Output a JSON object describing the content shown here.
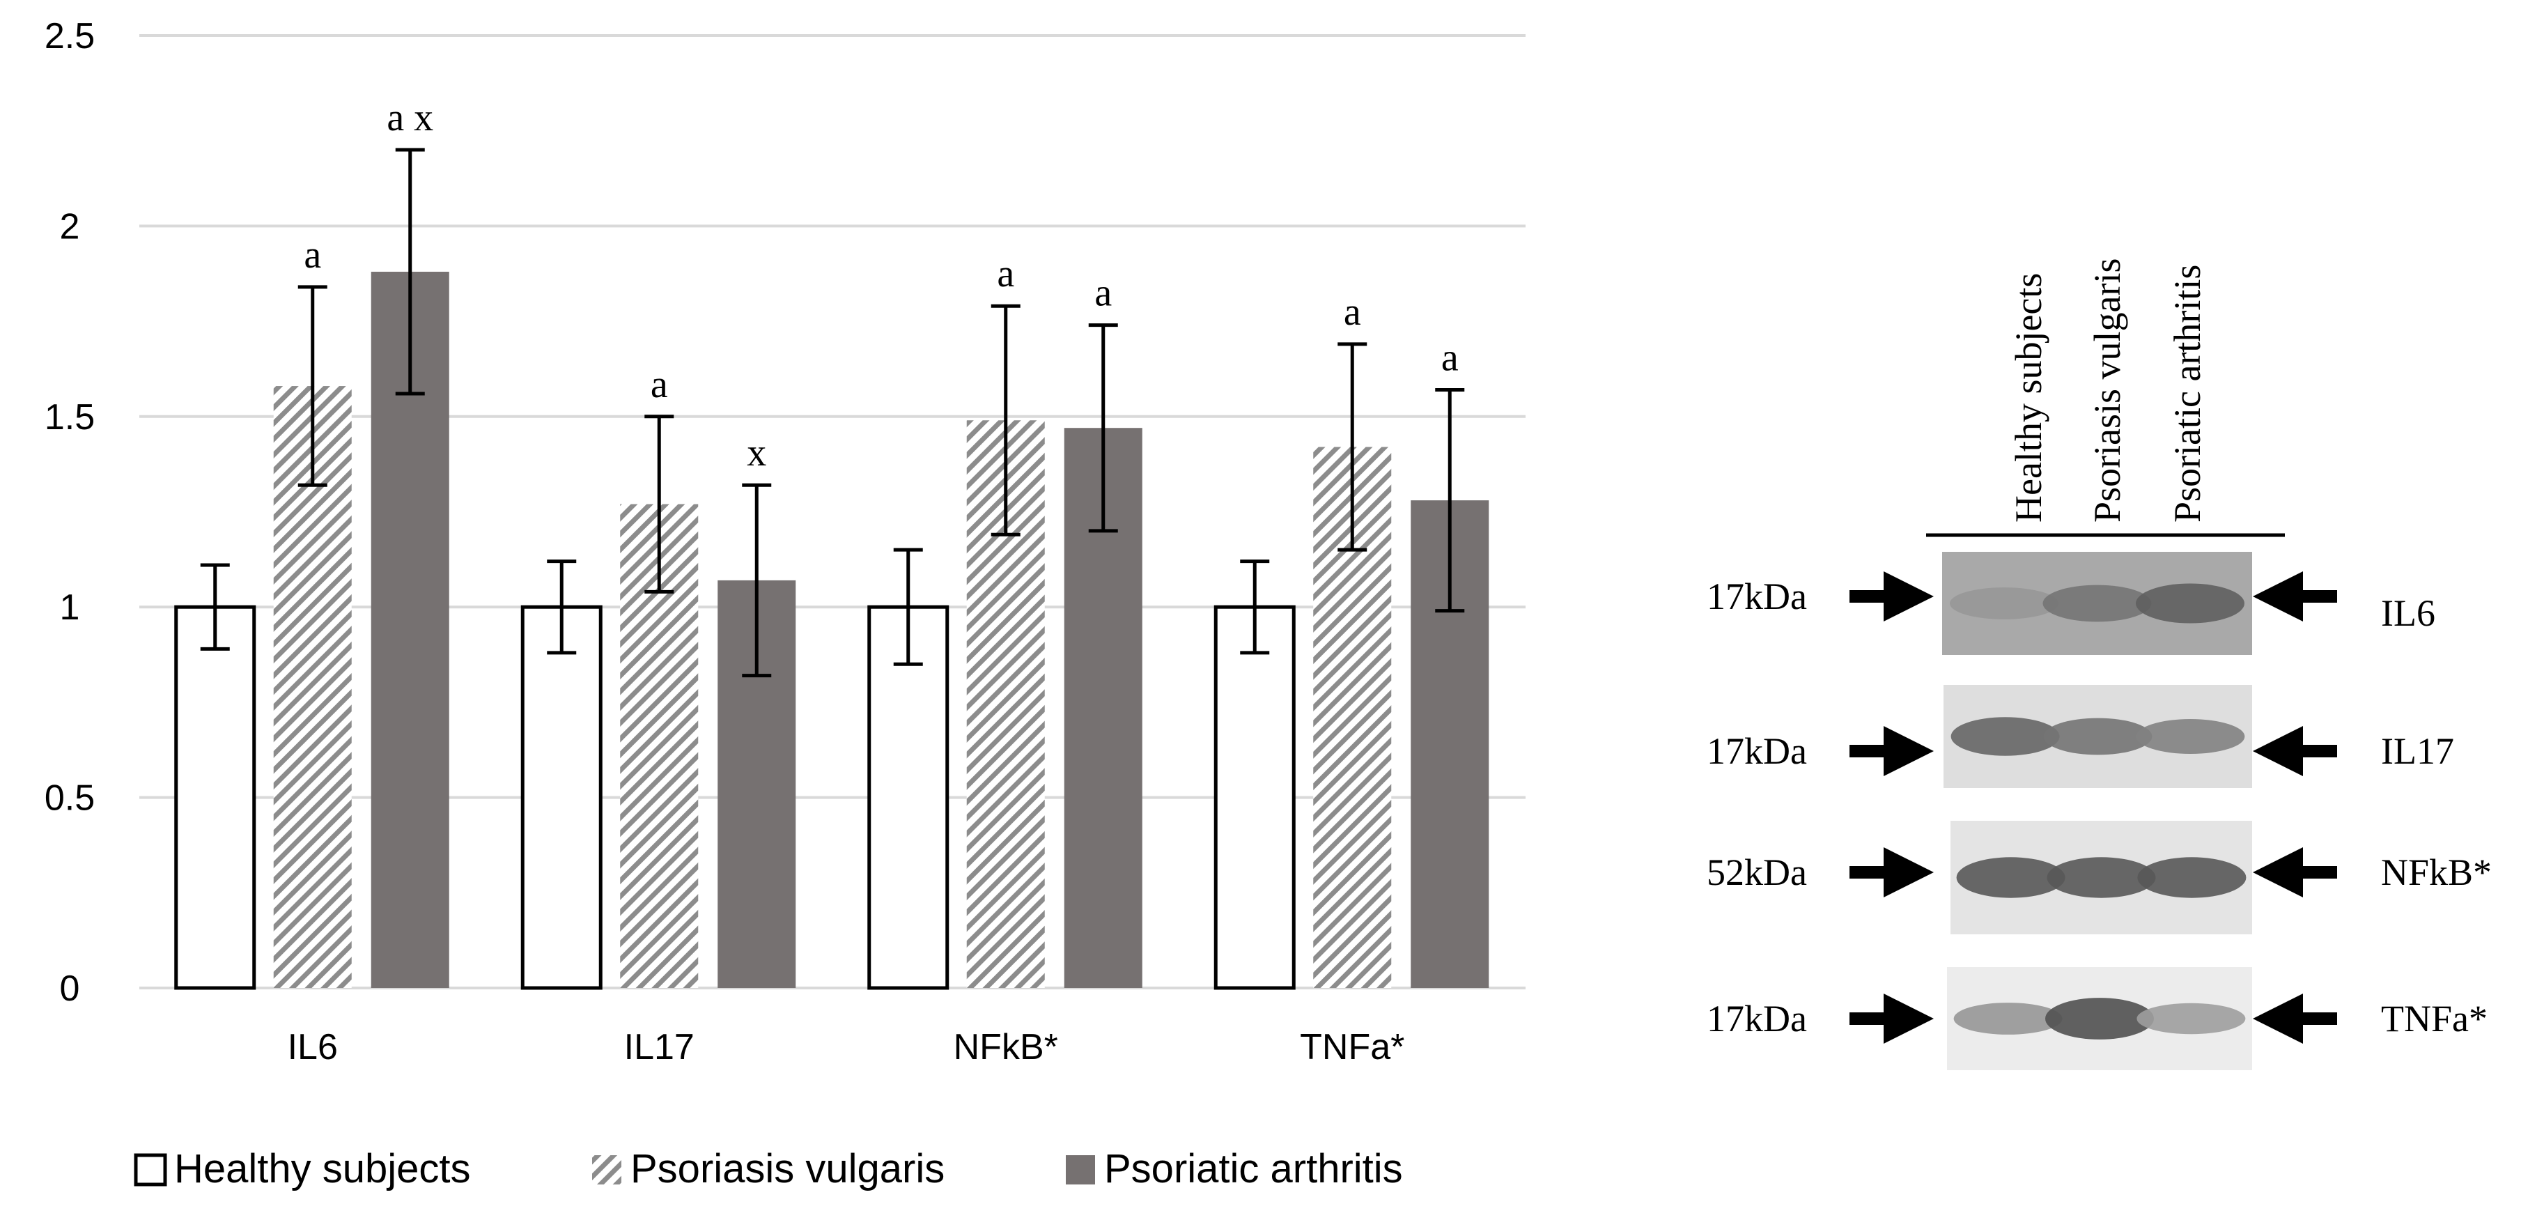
{
  "chart_data": {
    "type": "bar",
    "categories": [
      "IL6",
      "IL17",
      "NFkB*",
      "TNFa*"
    ],
    "series": [
      {
        "name": "Healthy subjects",
        "style": "white",
        "values": [
          1.0,
          1.0,
          1.0,
          1.0
        ],
        "errors": [
          0.11,
          0.12,
          0.15,
          0.12
        ],
        "labels": [
          "",
          "",
          "",
          ""
        ]
      },
      {
        "name": "Psoriasis vulgaris",
        "style": "hatched",
        "values": [
          1.58,
          1.27,
          1.49,
          1.42
        ],
        "errors": [
          0.26,
          0.23,
          0.3,
          0.27
        ],
        "labels": [
          "a",
          "a",
          "a",
          "a"
        ]
      },
      {
        "name": "Psoriatic arthritis",
        "style": "dark-grey",
        "values": [
          1.88,
          1.07,
          1.47,
          1.28
        ],
        "errors": [
          0.32,
          0.25,
          0.27,
          0.29
        ],
        "labels": [
          "a x",
          "x",
          "a",
          "a"
        ]
      }
    ],
    "yticks": [
      "0",
      "0.5",
      "1",
      "1.5",
      "2",
      "2.5"
    ],
    "ylim": [
      0,
      2.5
    ],
    "grid": true,
    "legend_position": "bottom",
    "title": "",
    "xlabel": "",
    "ylabel": ""
  },
  "colors": {
    "grid": "#d9d9d9",
    "dark_bar": "#767171",
    "hatch": "#8c8c8c",
    "axis_text": "#000000"
  },
  "western_blot": {
    "lanes": [
      "Healthy  subjects",
      "Psoriasis vulgaris",
      "Psoriatic arthritis"
    ],
    "rows": [
      {
        "kda": "17kDa",
        "protein": "IL6",
        "band_intensity": [
          0.35,
          0.6,
          0.75
        ]
      },
      {
        "kda": "17kDa",
        "protein": "IL17",
        "band_intensity": [
          0.7,
          0.6,
          0.5
        ]
      },
      {
        "kda": "52kDa",
        "protein": "NFkB*",
        "band_intensity": [
          0.8,
          0.8,
          0.8
        ]
      },
      {
        "kda": "17kDa",
        "protein": "TNFa*",
        "band_intensity": [
          0.35,
          0.85,
          0.3
        ]
      }
    ]
  }
}
